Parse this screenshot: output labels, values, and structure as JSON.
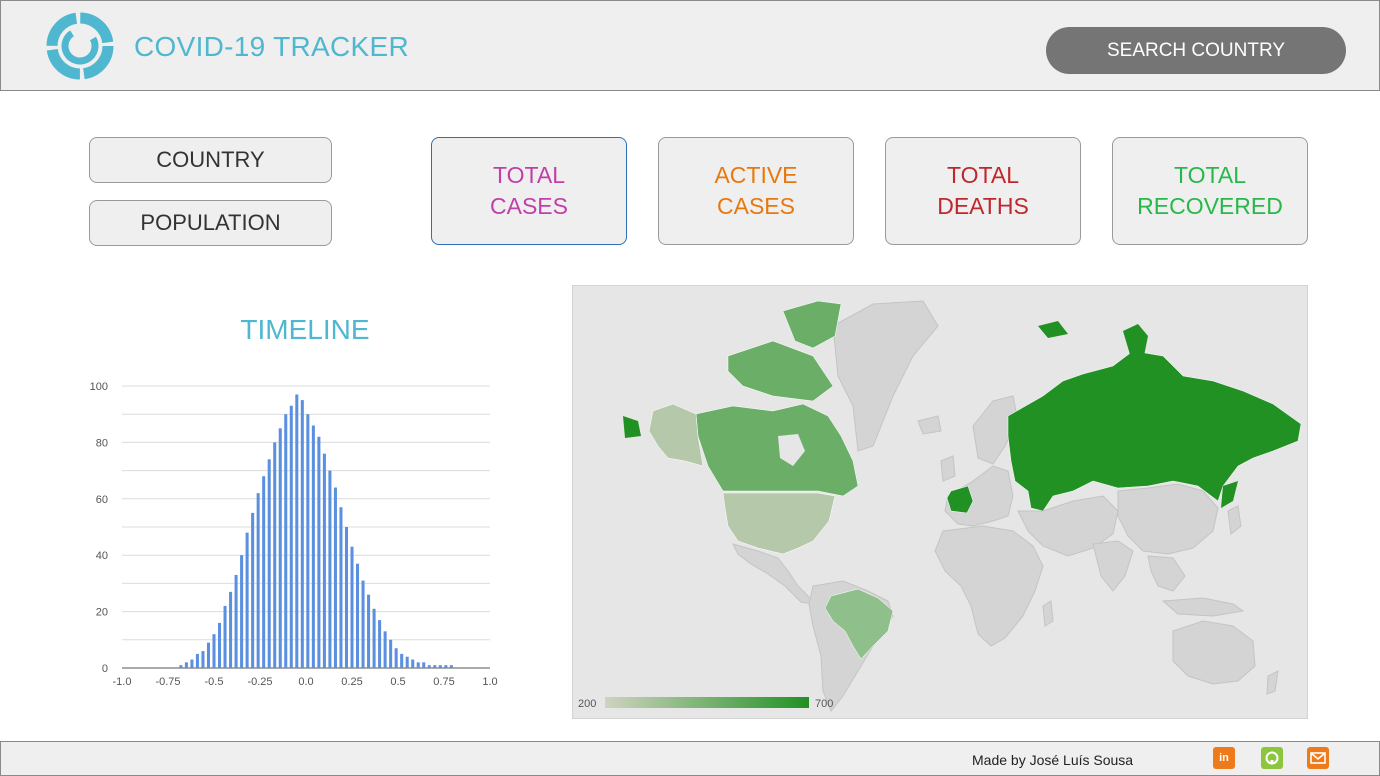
{
  "header": {
    "title": "COVID-19 TRACKER",
    "search_label": "SEARCH COUNTRY"
  },
  "info": {
    "country_label": "COUNTRY",
    "population_label": "POPULATION"
  },
  "stats": [
    {
      "line1": "TOTAL",
      "line2": "CASES",
      "color": "#c23fa9",
      "selected": true
    },
    {
      "line1": "ACTIVE",
      "line2": "CASES",
      "color": "#e8780d",
      "selected": false
    },
    {
      "line1": "TOTAL",
      "line2": "DEATHS",
      "color": "#c0272d",
      "selected": false
    },
    {
      "line1": "TOTAL",
      "line2": "RECOVERED",
      "color": "#28b84a",
      "selected": false
    }
  ],
  "timeline": {
    "title": "TIMELINE"
  },
  "chart_data": {
    "type": "bar",
    "xlim": [
      -1.0,
      1.0
    ],
    "ylim": [
      0,
      100
    ],
    "x_ticks": [
      "-1.0",
      "-0.75",
      "-0.5",
      "-0.25",
      "0.0",
      "0.25",
      "0.5",
      "0.75",
      "1.0"
    ],
    "y_ticks": [
      "0",
      "20",
      "40",
      "60",
      "80",
      "100"
    ],
    "grid": true,
    "bar_color": "#5b8fe0",
    "x": [
      -0.68,
      -0.65,
      -0.62,
      -0.59,
      -0.56,
      -0.53,
      -0.5,
      -0.47,
      -0.44,
      -0.41,
      -0.38,
      -0.35,
      -0.32,
      -0.29,
      -0.26,
      -0.23,
      -0.2,
      -0.17,
      -0.14,
      -0.11,
      -0.08,
      -0.05,
      -0.02,
      0.01,
      0.04,
      0.07,
      0.1,
      0.13,
      0.16,
      0.19,
      0.22,
      0.25,
      0.28,
      0.31,
      0.34,
      0.37,
      0.4,
      0.43,
      0.46,
      0.49,
      0.52,
      0.55,
      0.58,
      0.61,
      0.64,
      0.67,
      0.7,
      0.73,
      0.76,
      0.79
    ],
    "values": [
      1,
      2,
      3,
      5,
      6,
      9,
      12,
      16,
      22,
      27,
      33,
      40,
      48,
      55,
      62,
      68,
      74,
      80,
      85,
      90,
      93,
      97,
      95,
      90,
      86,
      82,
      76,
      70,
      64,
      57,
      50,
      43,
      37,
      31,
      26,
      21,
      17,
      13,
      10,
      7,
      5,
      4,
      3,
      2,
      2,
      1,
      1,
      1,
      1,
      1
    ]
  },
  "map": {
    "legend_min": "200",
    "legend_max": "700",
    "legend_color_low": "#cfd3bf",
    "legend_color_high": "#219124",
    "land_color": "#d4d4d4",
    "highlight_colors": {
      "russia": "#219124",
      "canada": "#6aae67",
      "greenland_north": "#6aae67",
      "usa": "#b5c9aa",
      "alaska": "#b5c9aa",
      "brazil": "#8fc08b",
      "france": "#219124"
    }
  },
  "footer": {
    "credit": "Made by José Luís Sousa",
    "linkedin_icon": "linkedin-icon",
    "github_icon": "github-icon",
    "email_icon": "email-icon",
    "linkedin_color": "#ee7b1b",
    "github_color": "#8cc63e",
    "email_color": "#ee7b1b"
  }
}
